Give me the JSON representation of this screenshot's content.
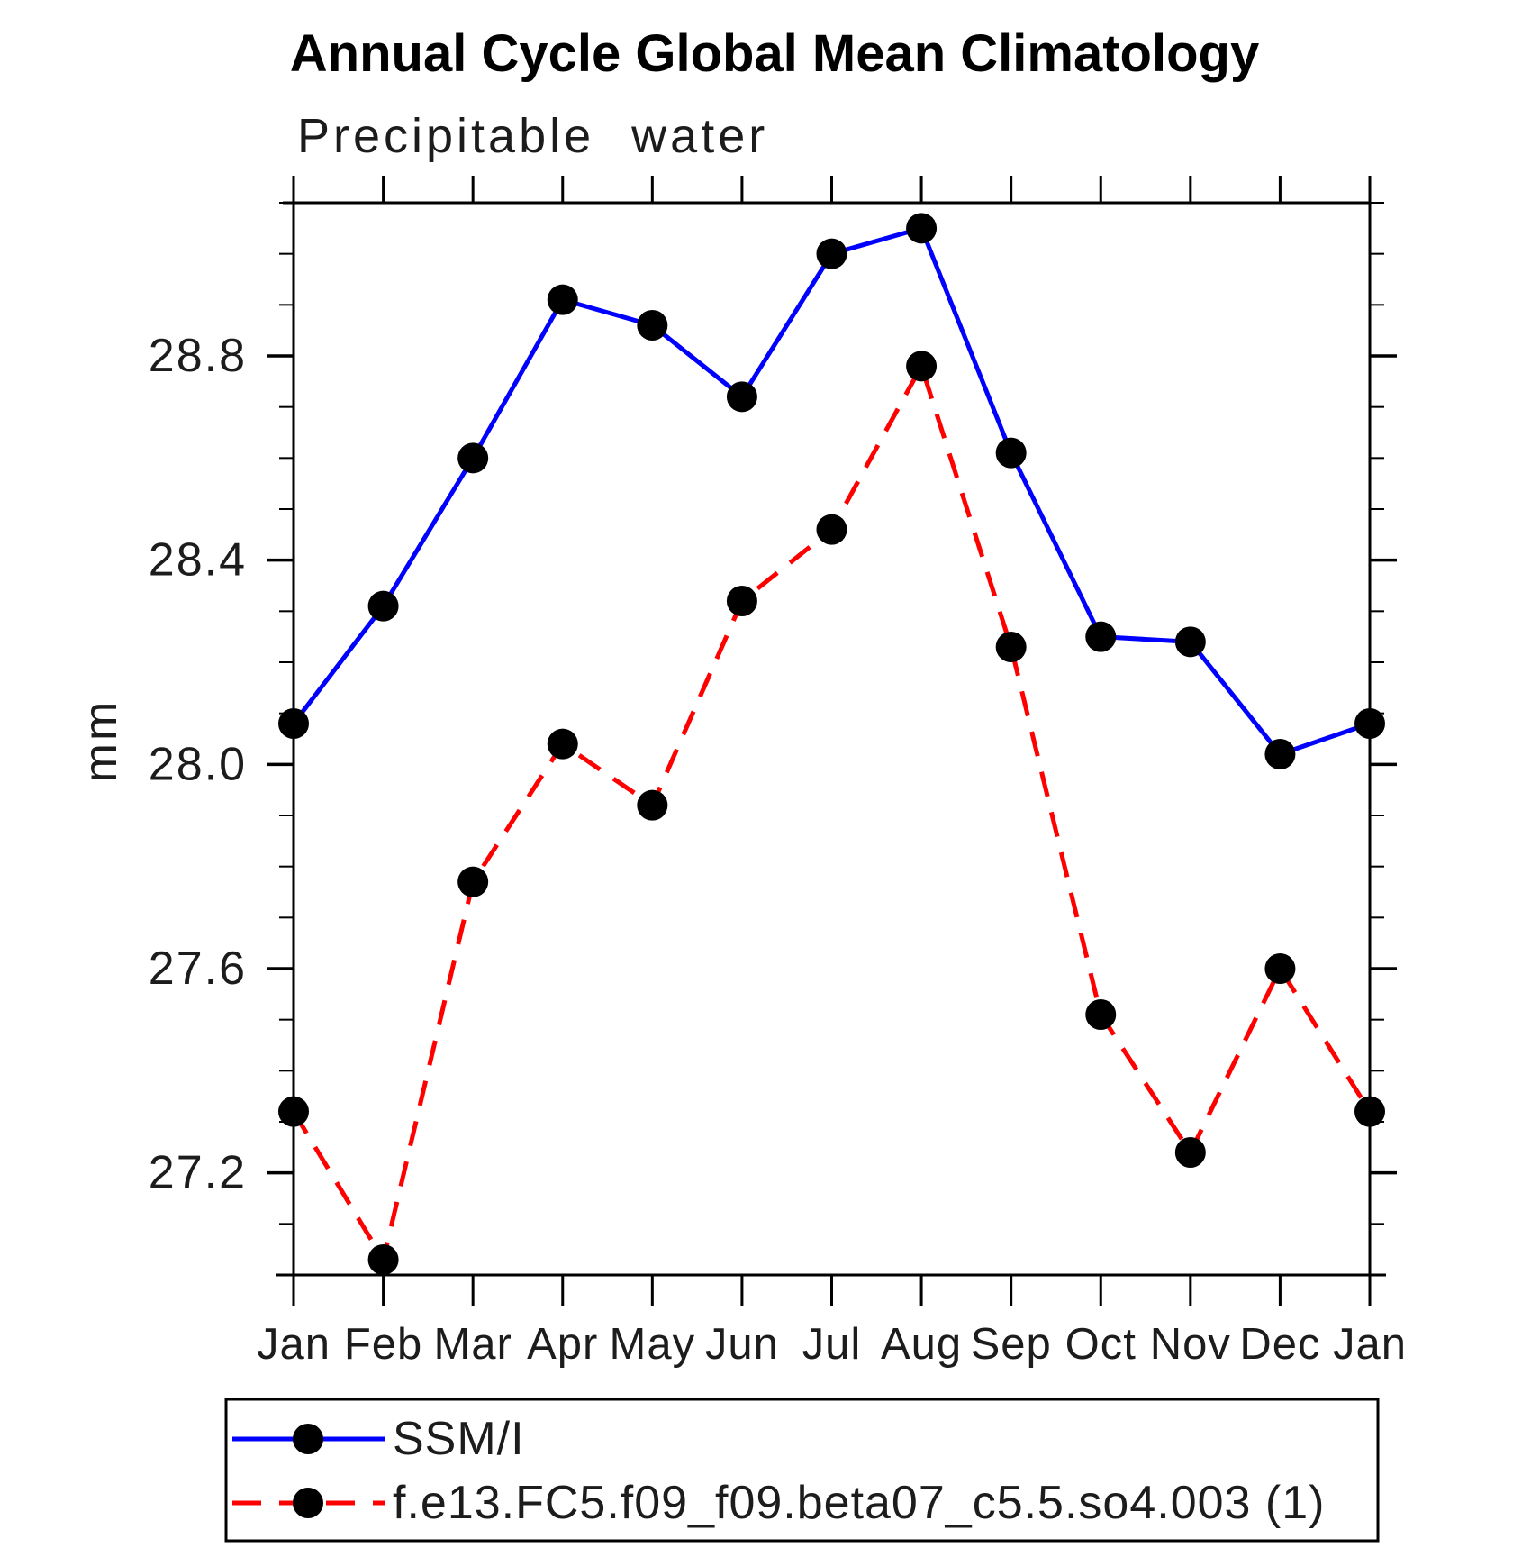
{
  "title": "Annual Cycle Global Mean Climatology",
  "subtitle": "Precipitable water",
  "ylabel": "mm",
  "legend": {
    "entries": [
      {
        "label": "SSM/I",
        "color": "#0000ff",
        "style": "solid",
        "marker_color": "#000000"
      },
      {
        "label": "f.e13.FC5.f09_f09.beta07_c5.5.so4.003 (1)",
        "color": "#ff0000",
        "style": "dashed",
        "marker_color": "#000000"
      }
    ]
  },
  "chart_data": {
    "type": "line",
    "title": "Annual Cycle Global Mean Climatology",
    "subtitle": "Precipitable water",
    "xlabel": "",
    "ylabel": "mm",
    "categories": [
      "Jan",
      "Feb",
      "Mar",
      "Apr",
      "May",
      "Jun",
      "Jul",
      "Aug",
      "Sep",
      "Oct",
      "Nov",
      "Dec",
      "Jan"
    ],
    "series": [
      {
        "name": "SSM/I",
        "color": "#0000ff",
        "line_style": "solid",
        "marker": "filled-circle",
        "marker_color": "#000000",
        "values": [
          28.08,
          28.31,
          28.6,
          28.91,
          28.86,
          28.72,
          29.0,
          29.05,
          28.61,
          28.25,
          28.24,
          28.02,
          28.08
        ]
      },
      {
        "name": "f.e13.FC5.f09_f09.beta07_c5.5.so4.003 (1)",
        "color": "#ff0000",
        "line_style": "dashed",
        "marker": "filled-circle",
        "marker_color": "#000000",
        "values": [
          27.32,
          27.03,
          27.77,
          28.04,
          27.92,
          28.32,
          28.46,
          28.78,
          28.23,
          27.51,
          27.24,
          27.6,
          27.32
        ]
      }
    ],
    "ylim": [
      27.0,
      29.1
    ],
    "yticks_major": [
      27.2,
      27.6,
      28.0,
      28.4,
      28.8
    ],
    "ytick_minor_step": 0.1,
    "grid": false,
    "legend_position": "bottom"
  }
}
